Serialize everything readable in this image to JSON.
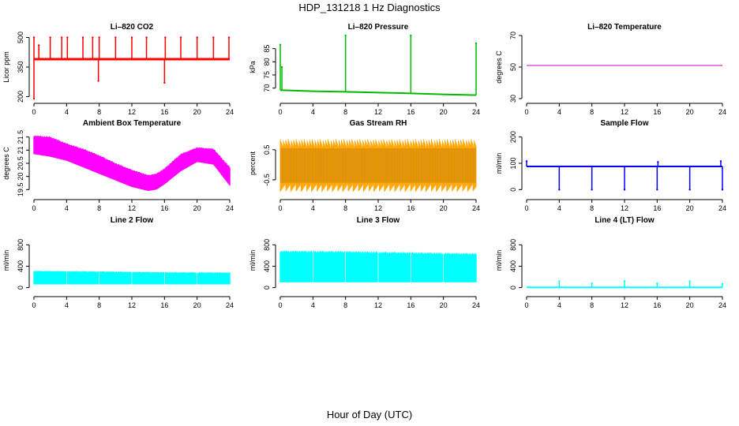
{
  "title": "HDP_131218  1 Hz Diagnostics",
  "xlabel": "Hour of Day (UTC)",
  "chart_data": [
    {
      "type": "line",
      "title": "Li–820 CO2",
      "ylabel": "Licor ppm",
      "color": "#ff0000",
      "xlim": [
        0,
        24
      ],
      "ylim": [
        190,
        510
      ],
      "xticks": [
        "0",
        "4",
        "8",
        "12",
        "16",
        "20",
        "24"
      ],
      "yticks": [
        200,
        350,
        500
      ],
      "ytick_labels": [
        "200",
        "350",
        "500"
      ],
      "baseline": 390,
      "spikes": [
        {
          "x": 0.0,
          "y": 190
        },
        {
          "x": 0.0,
          "y": 500
        },
        {
          "x": 0.6,
          "y": 460
        },
        {
          "x": 2.0,
          "y": 500
        },
        {
          "x": 3.4,
          "y": 500
        },
        {
          "x": 4.1,
          "y": 500
        },
        {
          "x": 6.0,
          "y": 500
        },
        {
          "x": 7.2,
          "y": 500
        },
        {
          "x": 7.9,
          "y": 280
        },
        {
          "x": 8.0,
          "y": 500
        },
        {
          "x": 10.0,
          "y": 500
        },
        {
          "x": 12.0,
          "y": 500
        },
        {
          "x": 13.8,
          "y": 500
        },
        {
          "x": 16.0,
          "y": 270
        },
        {
          "x": 16.1,
          "y": 500
        },
        {
          "x": 18.0,
          "y": 500
        },
        {
          "x": 20.0,
          "y": 500
        },
        {
          "x": 22.0,
          "y": 500
        },
        {
          "x": 23.9,
          "y": 500
        }
      ]
    },
    {
      "type": "line",
      "title": "Li–820 Pressure",
      "ylabel": "kPa",
      "color": "#00bb00",
      "xlim": [
        0,
        24
      ],
      "ylim": [
        66,
        90
      ],
      "xticks": [
        "0",
        "4",
        "8",
        "12",
        "16",
        "20",
        "24"
      ],
      "yticks": [
        70,
        75,
        80,
        85
      ],
      "ytick_labels": [
        "70",
        "75",
        "80",
        "85"
      ],
      "x": [
        0,
        0.3,
        4,
        8,
        12,
        16,
        20,
        24
      ],
      "y": [
        69.2,
        69.2,
        68.8,
        68.6,
        68.3,
        68.0,
        67.6,
        67.3
      ],
      "spikes": [
        {
          "x": 0.0,
          "y": 86.5
        },
        {
          "x": 0.2,
          "y": 78.0
        },
        {
          "x": 8.0,
          "y": 90.0
        },
        {
          "x": 16.0,
          "y": 90.0
        },
        {
          "x": 24.0,
          "y": 87.0
        }
      ]
    },
    {
      "type": "line",
      "title": "Li–820 Temperature",
      "ylabel": "degrees C",
      "color": "#cc00cc",
      "xlim": [
        0,
        24
      ],
      "ylim": [
        30,
        70
      ],
      "xticks": [
        "0",
        "4",
        "8",
        "12",
        "16",
        "20",
        "24"
      ],
      "yticks": [
        30,
        50,
        70
      ],
      "ytick_labels": [
        "30",
        "50",
        "70"
      ],
      "x": [
        0,
        24
      ],
      "y": [
        51,
        51
      ]
    },
    {
      "type": "area",
      "title": "Ambient Box Temperature",
      "ylabel": "degrees C",
      "color": "#ff00ff",
      "xlim": [
        0,
        24
      ],
      "ylim": [
        19.3,
        21.7
      ],
      "xticks": [
        "0",
        "4",
        "8",
        "12",
        "16",
        "20",
        "24"
      ],
      "yticks": [
        19.5,
        20.0,
        20.5,
        21.0,
        21.5
      ],
      "ytick_labels": [
        "19.5",
        "20",
        "20.5",
        "21",
        "21.5"
      ],
      "x": [
        0,
        2,
        4,
        6,
        8,
        10,
        12,
        14,
        15,
        16,
        18,
        20,
        22,
        24
      ],
      "y_low": [
        20.85,
        20.75,
        20.6,
        20.35,
        20.1,
        19.85,
        19.6,
        19.45,
        19.5,
        19.7,
        20.2,
        20.55,
        20.45,
        19.65
      ],
      "y_high": [
        21.55,
        21.5,
        21.25,
        21.05,
        20.8,
        20.5,
        20.25,
        20.05,
        20.1,
        20.3,
        20.85,
        21.1,
        21.05,
        20.35
      ]
    },
    {
      "type": "area",
      "title": "Gas Stream RH",
      "ylabel": "percent",
      "color": "#ffa500",
      "xlim": [
        0,
        24
      ],
      "ylim": [
        -1.0,
        1.1
      ],
      "xticks": [
        "0",
        "4",
        "8",
        "12",
        "16",
        "20",
        "24"
      ],
      "yticks": [
        -0.5,
        0.5
      ],
      "ytick_labels": [
        "-0.5",
        "0.5"
      ],
      "y_low": -0.9,
      "y_high": 0.85
    },
    {
      "type": "line",
      "title": "Sample Flow",
      "ylabel": "ml/min",
      "color": "#0000ff",
      "xlim": [
        0,
        24
      ],
      "ylim": [
        -20,
        220
      ],
      "xticks": [
        "0",
        "4",
        "8",
        "12",
        "16",
        "20",
        "24"
      ],
      "yticks": [
        0,
        100,
        200
      ],
      "ytick_labels": [
        "0",
        "100",
        "200"
      ],
      "x": [
        0,
        24
      ],
      "y": [
        88,
        88
      ],
      "spikes": [
        {
          "x": 0.0,
          "y": 108
        },
        {
          "x": 4.0,
          "y": 0
        },
        {
          "x": 8.0,
          "y": 0
        },
        {
          "x": 12.0,
          "y": 0
        },
        {
          "x": 16.0,
          "y": 0
        },
        {
          "x": 16.1,
          "y": 105
        },
        {
          "x": 20.0,
          "y": 0
        },
        {
          "x": 23.8,
          "y": 108
        },
        {
          "x": 24.0,
          "y": 0
        }
      ]
    },
    {
      "type": "area",
      "title": "Line 2 Flow",
      "ylabel": "ml/min",
      "color": "#00ffff",
      "xlim": [
        0,
        24
      ],
      "ylim": [
        -80,
        1100
      ],
      "xticks": [
        "0",
        "4",
        "8",
        "12",
        "16",
        "20",
        "24"
      ],
      "yticks": [
        0,
        400,
        800
      ],
      "ytick_labels": [
        "0",
        "400",
        "800"
      ],
      "x": [
        0,
        8,
        16,
        24
      ],
      "y_low": [
        60,
        60,
        60,
        60
      ],
      "y_high": [
        310,
        300,
        285,
        280
      ],
      "gaps": [
        4,
        8,
        12,
        16,
        20
      ]
    },
    {
      "type": "area",
      "title": "Line 3 Flow",
      "ylabel": "ml/min",
      "color": "#00ffff",
      "xlim": [
        0,
        24
      ],
      "ylim": [
        -80,
        1100
      ],
      "xticks": [
        "0",
        "4",
        "8",
        "12",
        "16",
        "20",
        "24"
      ],
      "yticks": [
        0,
        400,
        800
      ],
      "ytick_labels": [
        "0",
        "400",
        "800"
      ],
      "x": [
        0,
        8,
        16,
        24
      ],
      "y_low": [
        100,
        100,
        100,
        100
      ],
      "y_high": [
        680,
        670,
        650,
        630
      ],
      "gaps": [
        4,
        8,
        12,
        16,
        20
      ]
    },
    {
      "type": "line",
      "title": "Line 4 (LT) Flow",
      "ylabel": "ml/min",
      "color": "#00ffff",
      "xlim": [
        0,
        24
      ],
      "ylim": [
        -80,
        1100
      ],
      "xticks": [
        "0",
        "4",
        "8",
        "12",
        "16",
        "20",
        "24"
      ],
      "yticks": [
        0,
        400,
        800
      ],
      "ytick_labels": [
        "0",
        "400",
        "800"
      ],
      "x": [
        0,
        24
      ],
      "y": [
        5,
        5
      ],
      "spikes": [
        {
          "x": 4.0,
          "y": 120
        },
        {
          "x": 8.0,
          "y": 80
        },
        {
          "x": 12.0,
          "y": 120
        },
        {
          "x": 16.0,
          "y": 80
        },
        {
          "x": 20.0,
          "y": 120
        },
        {
          "x": 24.0,
          "y": 70
        }
      ]
    }
  ]
}
